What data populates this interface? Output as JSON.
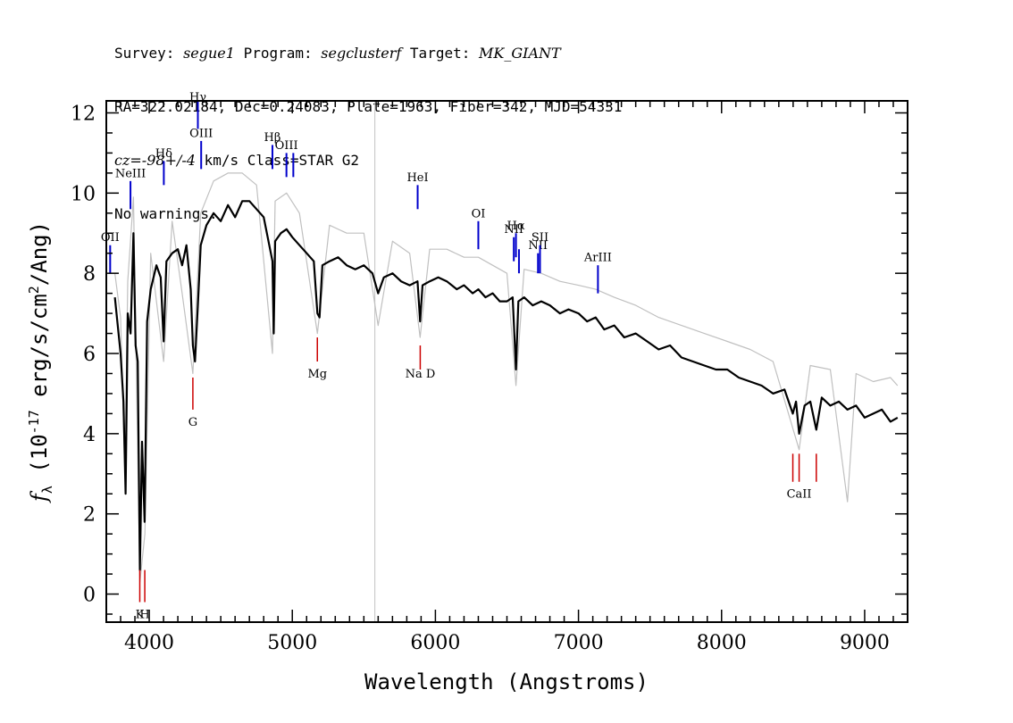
{
  "header": {
    "survey_label": "Survey:",
    "survey": "segue1",
    "program_label": "Program:",
    "program": "segclusterf",
    "target_label": "Target:",
    "target": "MK_GIANT",
    "line2": "RA=322.02184, Dec=0.24083, Plate=1963, Fiber=342, MJD=54331",
    "cz_label": "cz=",
    "cz_value": "-98+/-4",
    "cz_rest": " km/s Class=STAR G2",
    "line4": "No warnings."
  },
  "chart_data": {
    "type": "line",
    "xlabel": "Wavelength (Angstroms)",
    "ylabel": "f_λ (10^-17 erg/s/cm^2/Ang)",
    "xlim": [
      3700,
      9300
    ],
    "ylim": [
      -0.7,
      12.3
    ],
    "xticks": [
      4000,
      5000,
      6000,
      7000,
      8000,
      9000
    ],
    "yticks": [
      0,
      2,
      4,
      6,
      8,
      10,
      12
    ],
    "series": [
      {
        "role": "flux",
        "color": "#000000",
        "points": [
          [
            3760,
            7.4
          ],
          [
            3800,
            6.0
          ],
          [
            3820,
            4.8
          ],
          [
            3835,
            2.5
          ],
          [
            3850,
            7.0
          ],
          [
            3870,
            6.5
          ],
          [
            3890,
            9.0
          ],
          [
            3905,
            6.2
          ],
          [
            3920,
            5.8
          ],
          [
            3935,
            0.6
          ],
          [
            3950,
            3.8
          ],
          [
            3968,
            1.8
          ],
          [
            3985,
            6.8
          ],
          [
            4010,
            7.6
          ],
          [
            4050,
            8.2
          ],
          [
            4080,
            7.9
          ],
          [
            4101,
            6.3
          ],
          [
            4120,
            8.3
          ],
          [
            4160,
            8.5
          ],
          [
            4200,
            8.6
          ],
          [
            4230,
            8.2
          ],
          [
            4260,
            8.7
          ],
          [
            4290,
            7.6
          ],
          [
            4305,
            6.2
          ],
          [
            4320,
            5.8
          ],
          [
            4340,
            7.2
          ],
          [
            4360,
            8.7
          ],
          [
            4400,
            9.2
          ],
          [
            4450,
            9.5
          ],
          [
            4500,
            9.3
          ],
          [
            4550,
            9.7
          ],
          [
            4600,
            9.4
          ],
          [
            4650,
            9.8
          ],
          [
            4700,
            9.8
          ],
          [
            4750,
            9.6
          ],
          [
            4800,
            9.4
          ],
          [
            4861,
            8.3
          ],
          [
            4870,
            6.5
          ],
          [
            4880,
            8.8
          ],
          [
            4920,
            9.0
          ],
          [
            4960,
            9.1
          ],
          [
            5000,
            8.9
          ],
          [
            5050,
            8.7
          ],
          [
            5100,
            8.5
          ],
          [
            5150,
            8.3
          ],
          [
            5175,
            7.0
          ],
          [
            5190,
            6.9
          ],
          [
            5210,
            8.2
          ],
          [
            5260,
            8.3
          ],
          [
            5320,
            8.4
          ],
          [
            5380,
            8.2
          ],
          [
            5440,
            8.1
          ],
          [
            5500,
            8.2
          ],
          [
            5560,
            8.0
          ],
          [
            5600,
            7.5
          ],
          [
            5640,
            7.9
          ],
          [
            5700,
            8.0
          ],
          [
            5760,
            7.8
          ],
          [
            5820,
            7.7
          ],
          [
            5875,
            7.8
          ],
          [
            5893,
            6.8
          ],
          [
            5910,
            7.7
          ],
          [
            5960,
            7.8
          ],
          [
            6020,
            7.9
          ],
          [
            6080,
            7.8
          ],
          [
            6150,
            7.6
          ],
          [
            6200,
            7.7
          ],
          [
            6260,
            7.5
          ],
          [
            6300,
            7.6
          ],
          [
            6350,
            7.4
          ],
          [
            6400,
            7.5
          ],
          [
            6450,
            7.3
          ],
          [
            6500,
            7.3
          ],
          [
            6540,
            7.4
          ],
          [
            6563,
            5.6
          ],
          [
            6580,
            7.3
          ],
          [
            6620,
            7.4
          ],
          [
            6680,
            7.2
          ],
          [
            6740,
            7.3
          ],
          [
            6800,
            7.2
          ],
          [
            6870,
            7.0
          ],
          [
            6930,
            7.1
          ],
          [
            7000,
            7.0
          ],
          [
            7060,
            6.8
          ],
          [
            7120,
            6.9
          ],
          [
            7180,
            6.6
          ],
          [
            7250,
            6.7
          ],
          [
            7320,
            6.4
          ],
          [
            7400,
            6.5
          ],
          [
            7480,
            6.3
          ],
          [
            7560,
            6.1
          ],
          [
            7640,
            6.2
          ],
          [
            7720,
            5.9
          ],
          [
            7800,
            5.8
          ],
          [
            7880,
            5.7
          ],
          [
            7960,
            5.6
          ],
          [
            8040,
            5.6
          ],
          [
            8120,
            5.4
          ],
          [
            8200,
            5.3
          ],
          [
            8280,
            5.2
          ],
          [
            8360,
            5.0
          ],
          [
            8440,
            5.1
          ],
          [
            8498,
            4.5
          ],
          [
            8520,
            4.8
          ],
          [
            8542,
            4.0
          ],
          [
            8580,
            4.7
          ],
          [
            8620,
            4.8
          ],
          [
            8662,
            4.1
          ],
          [
            8700,
            4.9
          ],
          [
            8760,
            4.7
          ],
          [
            8820,
            4.8
          ],
          [
            8880,
            4.6
          ],
          [
            8940,
            4.7
          ],
          [
            9000,
            4.4
          ],
          [
            9060,
            4.5
          ],
          [
            9120,
            4.6
          ],
          [
            9180,
            4.3
          ],
          [
            9230,
            4.4
          ]
        ]
      },
      {
        "role": "flux-noise",
        "color": "#c0c0c0",
        "points": [
          [
            3760,
            8.0
          ],
          [
            3800,
            6.9
          ],
          [
            3830,
            3.0
          ],
          [
            3850,
            7.8
          ],
          [
            3890,
            9.9
          ],
          [
            3935,
            0.3
          ],
          [
            3970,
            1.5
          ],
          [
            4010,
            8.5
          ],
          [
            4101,
            5.8
          ],
          [
            4160,
            9.3
          ],
          [
            4230,
            7.5
          ],
          [
            4305,
            5.5
          ],
          [
            4360,
            9.5
          ],
          [
            4450,
            10.3
          ],
          [
            4550,
            10.5
          ],
          [
            4650,
            10.5
          ],
          [
            4750,
            10.2
          ],
          [
            4861,
            6.0
          ],
          [
            4880,
            9.8
          ],
          [
            4960,
            10.0
          ],
          [
            5050,
            9.5
          ],
          [
            5175,
            6.5
          ],
          [
            5260,
            9.2
          ],
          [
            5380,
            9.0
          ],
          [
            5500,
            9.0
          ],
          [
            5600,
            6.7
          ],
          [
            5700,
            8.8
          ],
          [
            5820,
            8.5
          ],
          [
            5893,
            6.4
          ],
          [
            5960,
            8.6
          ],
          [
            6080,
            8.6
          ],
          [
            6200,
            8.4
          ],
          [
            6300,
            8.4
          ],
          [
            6400,
            8.2
          ],
          [
            6500,
            8.0
          ],
          [
            6563,
            5.2
          ],
          [
            6620,
            8.1
          ],
          [
            6740,
            8.0
          ],
          [
            6870,
            7.8
          ],
          [
            7000,
            7.7
          ],
          [
            7120,
            7.6
          ],
          [
            7250,
            7.4
          ],
          [
            7400,
            7.2
          ],
          [
            7560,
            6.9
          ],
          [
            7720,
            6.7
          ],
          [
            7880,
            6.5
          ],
          [
            8040,
            6.3
          ],
          [
            8200,
            6.1
          ],
          [
            8360,
            5.8
          ],
          [
            8542,
            3.6
          ],
          [
            8620,
            5.7
          ],
          [
            8760,
            5.6
          ],
          [
            8880,
            2.3
          ],
          [
            8940,
            5.5
          ],
          [
            9060,
            5.3
          ],
          [
            9180,
            5.4
          ],
          [
            9230,
            5.2
          ]
        ]
      }
    ],
    "emission_lines": [
      {
        "label": "OII",
        "x": 3727,
        "y_bottom": 8.0,
        "y_top": 8.7,
        "label_y": 8.8
      },
      {
        "label": "NeIII",
        "x": 3869,
        "y_bottom": 9.6,
        "y_top": 10.3,
        "label_y": 10.4
      },
      {
        "label": "Hδ",
        "x": 4102,
        "y_bottom": 10.2,
        "y_top": 10.8,
        "label_y": 10.9
      },
      {
        "label": "Hγ",
        "x": 4340,
        "y_bottom": 11.6,
        "y_top": 12.3,
        "label_y": 12.3
      },
      {
        "label": "OIII",
        "x": 4363,
        "y_bottom": 10.6,
        "y_top": 11.3,
        "label_y": 11.4
      },
      {
        "label": "Hβ",
        "x": 4861,
        "y_bottom": 10.6,
        "y_top": 11.2,
        "label_y": 11.3
      },
      {
        "label": "OIII",
        "x": 4959,
        "y_bottom": 10.4,
        "y_top": 11.0,
        "label_y": 11.1
      },
      {
        "label": "",
        "x": 5007,
        "y_bottom": 10.4,
        "y_top": 11.0,
        "label_y": 11.1
      },
      {
        "label": "HeI",
        "x": 5876,
        "y_bottom": 9.6,
        "y_top": 10.2,
        "label_y": 10.3
      },
      {
        "label": "OI",
        "x": 6300,
        "y_bottom": 8.6,
        "y_top": 9.3,
        "label_y": 9.4
      },
      {
        "label": "NII",
        "x": 6548,
        "y_bottom": 8.3,
        "y_top": 8.9,
        "label_y": 9.0
      },
      {
        "label": "Hα",
        "x": 6563,
        "y_bottom": 8.4,
        "y_top": 9.0,
        "label_y": 9.1
      },
      {
        "label": "",
        "x": 6584,
        "y_bottom": 8.0,
        "y_top": 8.6,
        "label_y": 8.7
      },
      {
        "label": "NII",
        "x": 6717,
        "y_bottom": 8.0,
        "y_top": 8.5,
        "label_y": 8.6
      },
      {
        "label": "SII",
        "x": 6731,
        "y_bottom": 8.0,
        "y_top": 8.7,
        "label_y": 8.8
      },
      {
        "label": "ArIII",
        "x": 7136,
        "y_bottom": 7.5,
        "y_top": 8.2,
        "label_y": 8.3
      }
    ],
    "absorption_lines": [
      {
        "label": "K",
        "x": 3934,
        "y_top": 0.6,
        "y_bottom": -0.2,
        "label_y": -0.6
      },
      {
        "label": "H",
        "x": 3969,
        "y_top": 0.6,
        "y_bottom": -0.2,
        "label_y": -0.6
      },
      {
        "label": "G",
        "x": 4305,
        "y_top": 5.4,
        "y_bottom": 4.6,
        "label_y": 4.2
      },
      {
        "label": "Mg",
        "x": 5175,
        "y_top": 6.4,
        "y_bottom": 5.8,
        "label_y": 5.4
      },
      {
        "label": "Na D",
        "x": 5894,
        "y_top": 6.2,
        "y_bottom": 5.6,
        "label_y": 5.4
      },
      {
        "label": "",
        "x": 8498,
        "y_top": 3.5,
        "y_bottom": 2.8,
        "label_y": 2.4
      },
      {
        "label": "CaII",
        "x": 8542,
        "y_top": 3.5,
        "y_bottom": 2.8,
        "label_y": 2.4
      },
      {
        "label": "",
        "x": 8662,
        "y_top": 3.5,
        "y_bottom": 2.8,
        "label_y": 2.4
      }
    ],
    "marker_line": {
      "x": 5577,
      "color": "#c0c0c0"
    },
    "colors": {
      "emission": "#0000cc",
      "absorption": "#cc0000"
    }
  }
}
